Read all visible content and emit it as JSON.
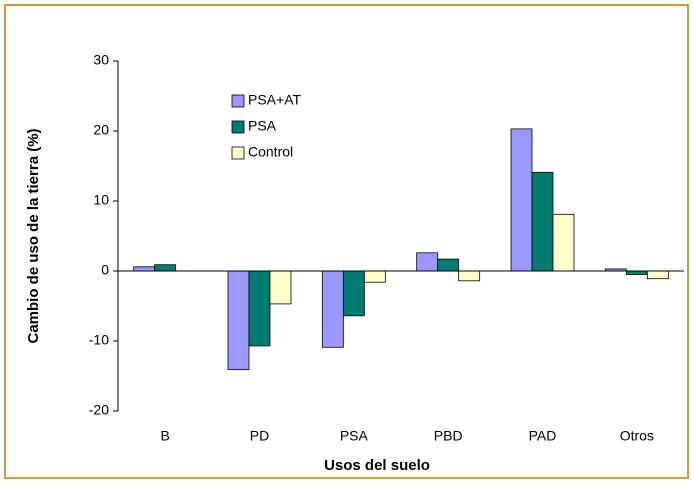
{
  "chart_data": {
    "type": "bar",
    "x_label": "Usos del suelo",
    "y_label": "Cambio de uso de la tierra (%)",
    "categories": [
      "B",
      "PD",
      "PSA",
      "PBD",
      "PAD",
      "Otros"
    ],
    "series": [
      {
        "name": "PSA+AT",
        "color": "#9999ff",
        "values": [
          0.6,
          -14.1,
          -10.9,
          2.6,
          20.3,
          0.3
        ]
      },
      {
        "name": "PSA",
        "color": "#007c70",
        "values": [
          0.9,
          -10.7,
          -6.4,
          1.7,
          14.1,
          -0.5
        ]
      },
      {
        "name": "Control",
        "color": "#ffffcc",
        "values": [
          0,
          -4.7,
          -1.6,
          -1.4,
          8.1,
          -1.1
        ]
      }
    ],
    "ylim": [
      -20,
      30
    ],
    "yticks": [
      -20,
      -10,
      0,
      10,
      20,
      30
    ],
    "grid": false,
    "legend": "top-left"
  }
}
